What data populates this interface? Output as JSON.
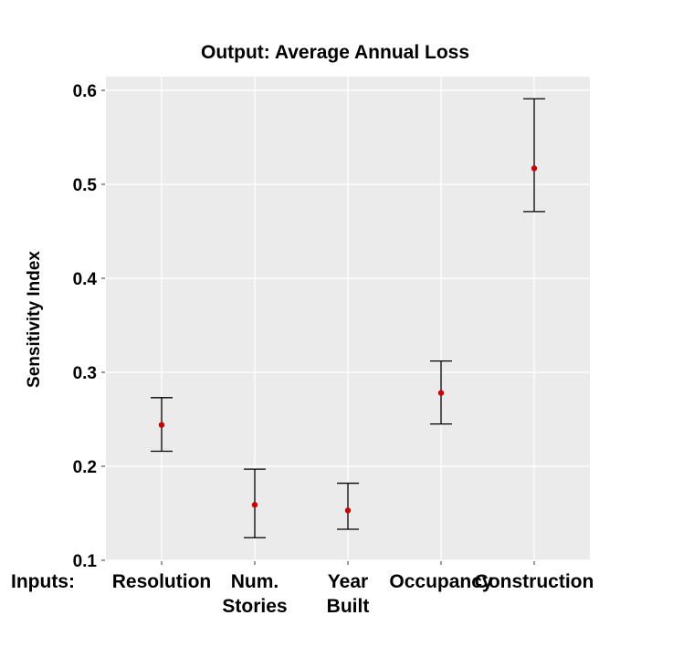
{
  "chart_data": {
    "type": "scatter",
    "title": "Output: Average Annual Loss",
    "ylabel": "Sensitivity Index",
    "xlabel_prefix": "Inputs:",
    "categories": [
      [
        "Resolution"
      ],
      [
        "Num.",
        "Stories"
      ],
      [
        "Year",
        "Built"
      ],
      [
        "Occupancy"
      ],
      [
        "Construction"
      ]
    ],
    "points": [
      {
        "value": 0.244,
        "lower": 0.216,
        "upper": 0.273
      },
      {
        "value": 0.159,
        "lower": 0.124,
        "upper": 0.197
      },
      {
        "value": 0.153,
        "lower": 0.133,
        "upper": 0.182
      },
      {
        "value": 0.278,
        "lower": 0.245,
        "upper": 0.312
      },
      {
        "value": 0.517,
        "lower": 0.471,
        "upper": 0.591
      }
    ],
    "ylim": [
      0.1,
      0.6
    ],
    "yticks": [
      "0.1",
      "0.2",
      "0.3",
      "0.4",
      "0.5",
      "0.6"
    ],
    "grid": true,
    "colors": {
      "background": "#EBEBEB",
      "grid": "#FFFFFF",
      "point": "#CC0000",
      "errorbar": "#000000"
    }
  }
}
